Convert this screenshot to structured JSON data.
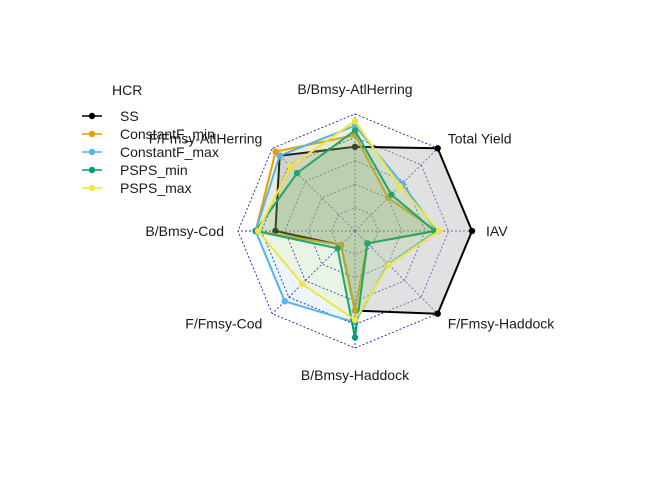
{
  "chart_data": {
    "type": "radar",
    "axes": [
      "B/Bmsy-AtlHerring",
      "Total Yield",
      "IAV",
      "F/Fmsy-Haddock",
      "B/Bmsy-Haddock",
      "F/Fmsy-Cod",
      "B/Bmsy-Cod",
      "F/Fmsy-AtlHerring"
    ],
    "rings": 5,
    "grid": true,
    "legend": {
      "title": "HCR",
      "position": "top-left"
    },
    "series": [
      {
        "name": "SS",
        "color": "#000000",
        "fill": "#bdbdbd",
        "values": [
          0.72,
          1.0,
          1.0,
          1.0,
          0.68,
          0.17,
          0.68,
          0.91
        ]
      },
      {
        "name": "ConstantF_min",
        "color": "#E69F00",
        "fill": "#E69F00",
        "values": [
          0.82,
          0.4,
          0.7,
          0.15,
          0.68,
          0.17,
          0.85,
          0.96
        ]
      },
      {
        "name": "ConstantF_max",
        "color": "#56B4E9",
        "fill": "#56B4E9",
        "values": [
          0.9,
          0.57,
          0.7,
          0.4,
          0.78,
          0.85,
          0.85,
          0.91
        ]
      },
      {
        "name": "PSPS_min",
        "color": "#009E73",
        "fill": "#009E73",
        "values": [
          0.86,
          0.44,
          0.68,
          0.15,
          0.91,
          0.21,
          0.85,
          0.7
        ]
      },
      {
        "name": "PSPS_max",
        "color": "#F0E442",
        "fill": "#F0E442",
        "values": [
          0.94,
          0.54,
          0.72,
          0.41,
          0.76,
          0.64,
          0.83,
          0.78
        ]
      }
    ]
  }
}
